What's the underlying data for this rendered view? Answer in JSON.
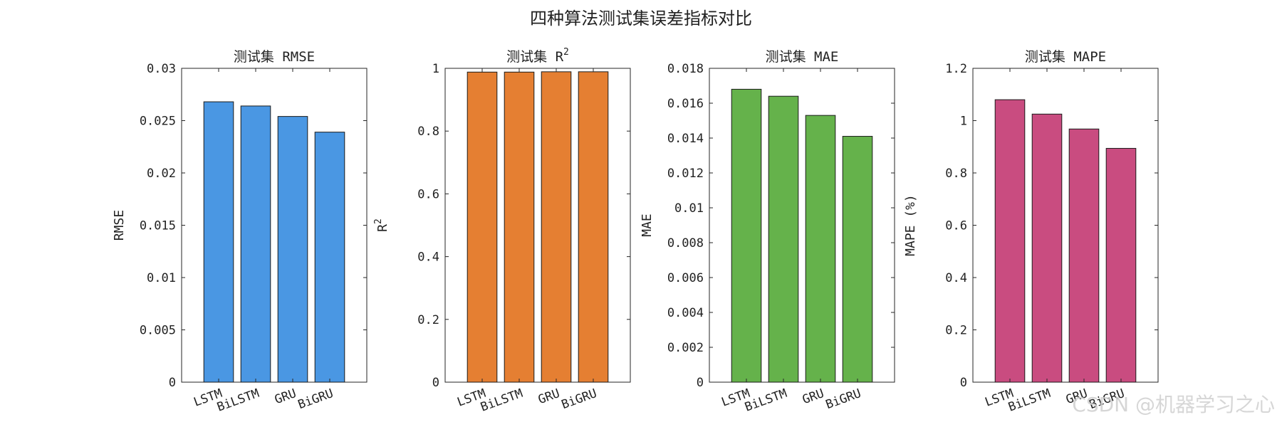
{
  "figure": {
    "title": "四种算法测试集误差指标对比",
    "watermark": "CSDN @机器学习之心"
  },
  "chart_data": [
    {
      "type": "bar",
      "title": "测试集 RMSE",
      "ylabel": "RMSE",
      "categories": [
        "LSTM",
        "BiLSTM",
        "GRU",
        "BiGRU"
      ],
      "values": [
        0.0268,
        0.0264,
        0.0254,
        0.0239
      ],
      "ylim": [
        0,
        0.03
      ],
      "yticks": [
        0,
        0.005,
        0.01,
        0.015,
        0.02,
        0.025,
        0.03
      ],
      "ytick_labels": [
        "0",
        "0.005",
        "0.01",
        "0.015",
        "0.02",
        "0.025",
        "0.03"
      ],
      "color": "#4a97e3",
      "grid": false
    },
    {
      "type": "bar",
      "title": "测试集 R",
      "title_sup": "2",
      "ylabel": "R",
      "ylabel_sup": "2",
      "categories": [
        "LSTM",
        "BiLSTM",
        "GRU",
        "BiGRU"
      ],
      "values": [
        0.988,
        0.988,
        0.989,
        0.989
      ],
      "ylim": [
        0,
        1
      ],
      "yticks": [
        0,
        0.2,
        0.4,
        0.6,
        0.8,
        1
      ],
      "ytick_labels": [
        "0",
        "0.2",
        "0.4",
        "0.6",
        "0.8",
        "1"
      ],
      "color": "#e57f32",
      "grid": false
    },
    {
      "type": "bar",
      "title": "测试集 MAE",
      "ylabel": "MAE",
      "categories": [
        "LSTM",
        "BiLSTM",
        "GRU",
        "BiGRU"
      ],
      "values": [
        0.0168,
        0.0164,
        0.0153,
        0.0141
      ],
      "ylim": [
        0,
        0.018
      ],
      "yticks": [
        0,
        0.002,
        0.004,
        0.006,
        0.008,
        0.01,
        0.012,
        0.014,
        0.016,
        0.018
      ],
      "ytick_labels": [
        "0",
        "0.002",
        "0.004",
        "0.006",
        "0.008",
        "0.01",
        "0.012",
        "0.014",
        "0.016",
        "0.018"
      ],
      "color": "#65b24b",
      "grid": false
    },
    {
      "type": "bar",
      "title": "测试集 MAPE",
      "ylabel": "MAPE (%)",
      "categories": [
        "LSTM",
        "BiLSTM",
        "GRU",
        "BiGRU"
      ],
      "values": [
        1.08,
        1.025,
        0.968,
        0.894
      ],
      "ylim": [
        0,
        1.2
      ],
      "yticks": [
        0,
        0.2,
        0.4,
        0.6,
        0.8,
        1,
        1.2
      ],
      "ytick_labels": [
        "0",
        "0.2",
        "0.4",
        "0.6",
        "0.8",
        "1",
        "1.2"
      ],
      "color": "#c94c80",
      "grid": false
    }
  ]
}
